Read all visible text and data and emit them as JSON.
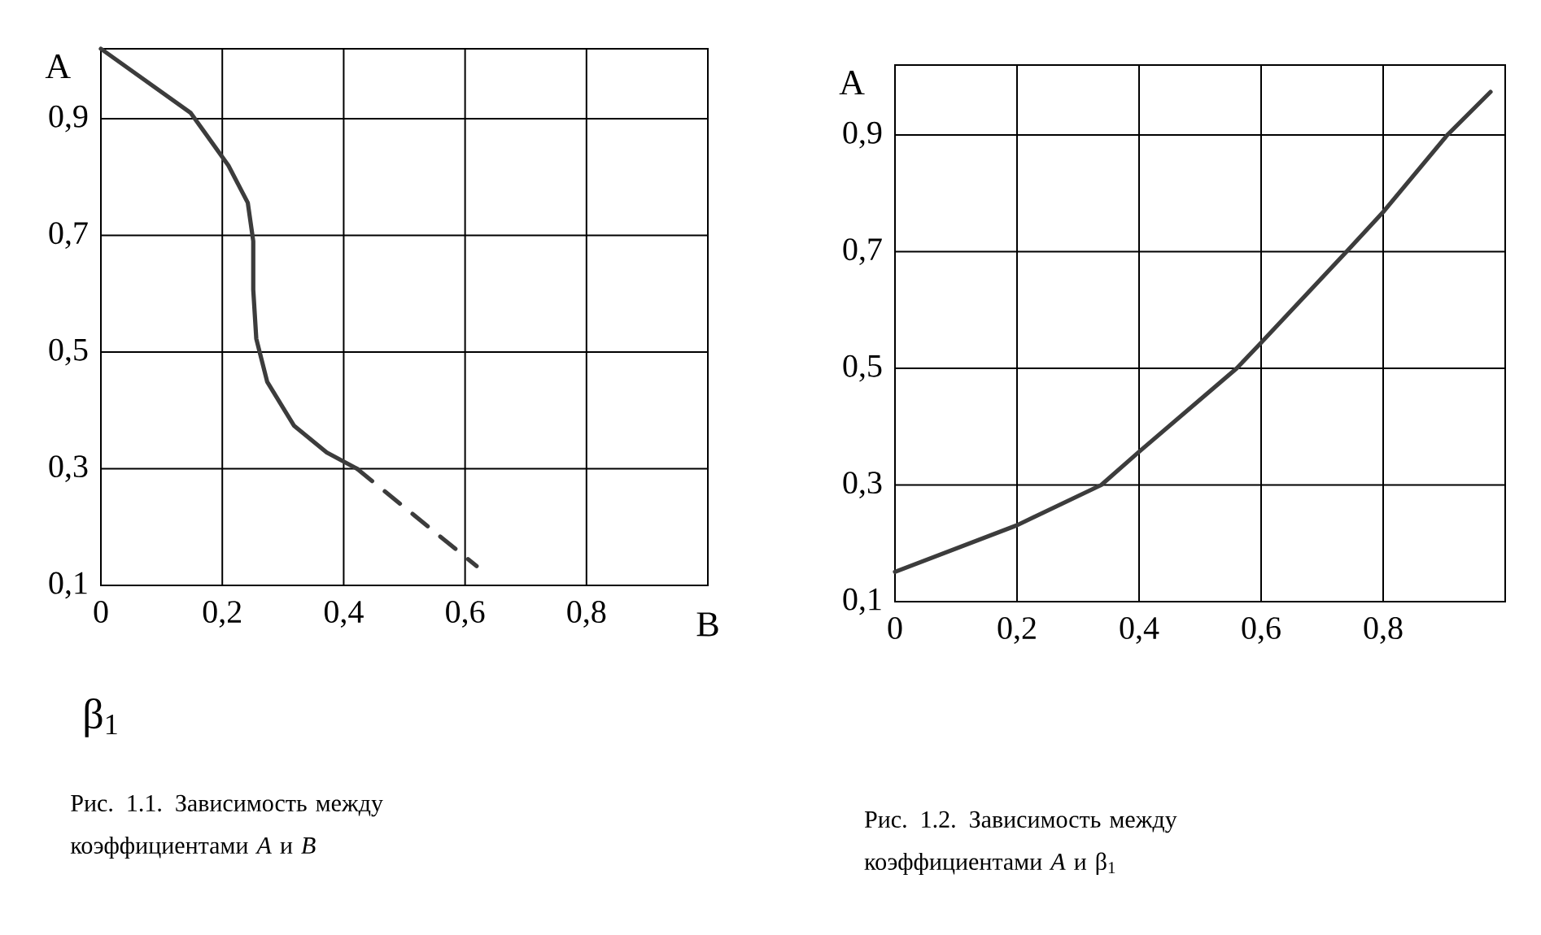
{
  "chart_data": [
    {
      "type": "line",
      "ylabel": "A",
      "xlabel": "B",
      "xlim": [
        0,
        1
      ],
      "ylim": [
        0.1,
        1.02
      ],
      "xticks": [
        0,
        {
          "value": 0.2,
          "label": "0,2"
        },
        {
          "value": 0.4,
          "label": "0,4"
        },
        {
          "value": 0.6,
          "label": "0,6"
        },
        {
          "value": 0.8,
          "label": "0,8"
        }
      ],
      "yticks": [
        {
          "value": 0.1,
          "label": "0,1"
        },
        {
          "value": 0.3,
          "label": "0,3"
        },
        {
          "value": 0.5,
          "label": "0,5"
        },
        {
          "value": 0.7,
          "label": "0,7"
        },
        {
          "value": 0.9,
          "label": "0,9"
        }
      ],
      "grid": true,
      "annotations": [
        "β$_{1}$",
        "Рис. 1.1. Зависимость между коэффициентами *A* и *B*"
      ],
      "series": [
        {
          "color": "#3c3c3c",
          "x": [
            0,
            0.148,
            0.21,
            0.242,
            0.251,
            0.251,
            0.256,
            0.274,
            0.318,
            0.372,
            0.422
          ],
          "values": [
            1.02,
            0.91,
            0.82,
            0.756,
            0.69,
            0.607,
            0.523,
            0.449,
            0.374,
            0.328,
            0.3
          ]
        },
        {
          "color": "#3c3c3c",
          "line_style": "dashed",
          "x": [
            0.422,
            0.619
          ],
          "values": [
            0.3,
            0.133
          ]
        }
      ]
    },
    {
      "type": "line",
      "ylabel": "A",
      "xlim": [
        0,
        1
      ],
      "ylim": [
        0.1,
        1.02
      ],
      "xticks": [
        0,
        {
          "value": 0.2,
          "label": "0,2"
        },
        {
          "value": 0.4,
          "label": "0,4"
        },
        {
          "value": 0.6,
          "label": "0,6"
        },
        {
          "value": 0.8,
          "label": "0,8"
        }
      ],
      "yticks": [
        {
          "value": 0.1,
          "label": "0,1"
        },
        {
          "value": 0.3,
          "label": "0,3"
        },
        {
          "value": 0.5,
          "label": "0,5"
        },
        {
          "value": 0.7,
          "label": "0,7"
        },
        {
          "value": 0.9,
          "label": "0,9"
        }
      ],
      "grid": true,
      "annotations": [
        "Рис. 1.2. Зависимость между коэффициентами *A* и β$_{1}$"
      ],
      "series": [
        {
          "color": "#3c3c3c",
          "x": [
            0,
            0.2,
            0.338,
            0.4,
            0.56,
            0.6,
            0.74,
            0.8,
            0.905,
            0.976
          ],
          "values": [
            0.151,
            0.231,
            0.3,
            0.357,
            0.5,
            0.544,
            0.7,
            0.768,
            0.9,
            0.974
          ]
        }
      ]
    }
  ]
}
